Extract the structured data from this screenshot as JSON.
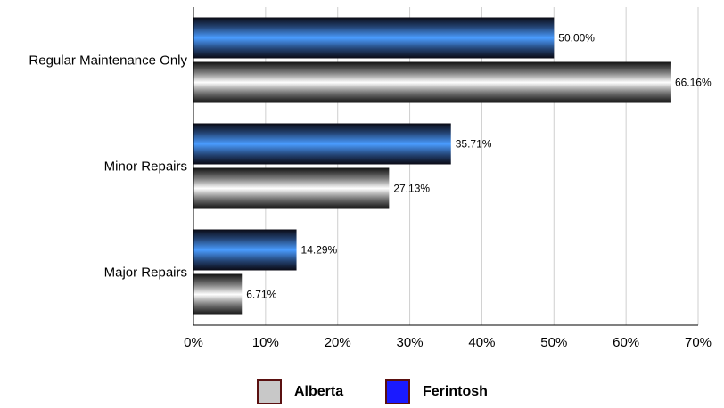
{
  "chart_data": {
    "type": "bar",
    "orientation": "horizontal",
    "categories": [
      "Regular Maintenance Only",
      "Minor Repairs",
      "Major Repairs"
    ],
    "series": [
      {
        "name": "Ferintosh",
        "values": [
          50.0,
          35.71,
          14.29
        ],
        "labels": [
          "50.00%",
          "35.71%",
          "14.29%"
        ],
        "color": "#3b82f6"
      },
      {
        "name": "Alberta",
        "values": [
          66.16,
          27.13,
          6.71
        ],
        "labels": [
          "66.16%",
          "27.13%",
          "6.71%"
        ],
        "color": "#bfbfbf"
      }
    ],
    "x_ticks": [
      "0%",
      "10%",
      "20%",
      "30%",
      "40%",
      "50%",
      "60%",
      "70%"
    ],
    "xlim": [
      0,
      70
    ],
    "grid": true,
    "legend_position": "bottom"
  },
  "legend": {
    "items": [
      {
        "label": "Alberta",
        "color": "#c8c8c8"
      },
      {
        "label": "Ferintosh",
        "color": "#1a1aff"
      }
    ]
  }
}
